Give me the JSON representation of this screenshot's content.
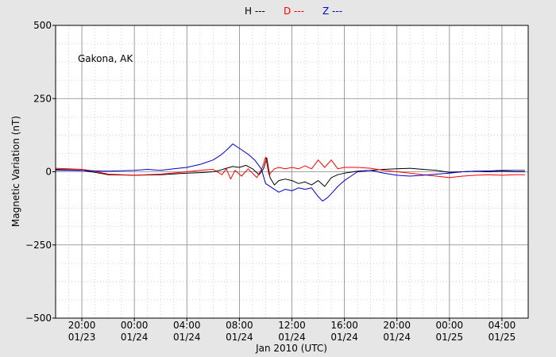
{
  "chart_data": {
    "type": "line",
    "title": "",
    "annotation": "Gakona, AK",
    "ylabel": "Magnetic Variation (nT)",
    "xlabel": "Jan 2010 (UTC)",
    "ylim": [
      -500,
      500
    ],
    "xlim": [
      "2010-01-23 18:00",
      "2010-01-25 06:00"
    ],
    "y_ticks": [
      -500,
      -250,
      0,
      250,
      500
    ],
    "y_tick_labels": [
      "−500",
      "−250",
      "0",
      "250",
      "500"
    ],
    "x_ticks": [
      {
        "time": "2010-01-23 20:00",
        "line1": "20:00",
        "line2": "01/23"
      },
      {
        "time": "2010-01-24 00:00",
        "line1": "00:00",
        "line2": "01/24"
      },
      {
        "time": "2010-01-24 04:00",
        "line1": "04:00",
        "line2": "01/24"
      },
      {
        "time": "2010-01-24 08:00",
        "line1": "08:00",
        "line2": "01/24"
      },
      {
        "time": "2010-01-24 12:00",
        "line1": "12:00",
        "line2": "01/24"
      },
      {
        "time": "2010-01-24 16:00",
        "line1": "16:00",
        "line2": "01/24"
      },
      {
        "time": "2010-01-24 20:00",
        "line1": "20:00",
        "line2": "01/24"
      },
      {
        "time": "2010-01-25 00:00",
        "line1": "00:00",
        "line2": "01/25"
      },
      {
        "time": "2010-01-25 04:00",
        "line1": "04:00",
        "line2": "01/25"
      }
    ],
    "grid": true,
    "legend_position": "top",
    "series": [
      {
        "name": "H ---",
        "color": "#000000",
        "points": [
          [
            "2010-01-23 18:00",
            8
          ],
          [
            "2010-01-23 20:00",
            5
          ],
          [
            "2010-01-23 21:00",
            -2
          ],
          [
            "2010-01-23 22:00",
            -10
          ],
          [
            "2010-01-24 00:00",
            -12
          ],
          [
            "2010-01-24 02:00",
            -10
          ],
          [
            "2010-01-24 04:00",
            -5
          ],
          [
            "2010-01-24 05:00",
            -3
          ],
          [
            "2010-01-24 06:00",
            0
          ],
          [
            "2010-01-24 06:30",
            5
          ],
          [
            "2010-01-24 07:00",
            12
          ],
          [
            "2010-01-24 07:30",
            18
          ],
          [
            "2010-01-24 08:00",
            15
          ],
          [
            "2010-01-24 08:30",
            22
          ],
          [
            "2010-01-24 09:00",
            10
          ],
          [
            "2010-01-24 09:30",
            -10
          ],
          [
            "2010-01-24 09:50",
            10
          ],
          [
            "2010-01-24 10:05",
            48
          ],
          [
            "2010-01-24 10:20",
            -20
          ],
          [
            "2010-01-24 10:40",
            -45
          ],
          [
            "2010-01-24 11:00",
            -30
          ],
          [
            "2010-01-24 11:30",
            -25
          ],
          [
            "2010-01-24 12:00",
            -30
          ],
          [
            "2010-01-24 12:30",
            -40
          ],
          [
            "2010-01-24 13:00",
            -35
          ],
          [
            "2010-01-24 13:30",
            -45
          ],
          [
            "2010-01-24 14:00",
            -30
          ],
          [
            "2010-01-24 14:30",
            -50
          ],
          [
            "2010-01-24 15:00",
            -20
          ],
          [
            "2010-01-24 15:30",
            -10
          ],
          [
            "2010-01-24 16:00",
            -5
          ],
          [
            "2010-01-24 17:00",
            2
          ],
          [
            "2010-01-24 18:00",
            5
          ],
          [
            "2010-01-24 19:00",
            8
          ],
          [
            "2010-01-24 20:00",
            10
          ],
          [
            "2010-01-24 21:00",
            12
          ],
          [
            "2010-01-24 22:00",
            8
          ],
          [
            "2010-01-24 23:00",
            5
          ],
          [
            "2010-01-25 00:00",
            -2
          ],
          [
            "2010-01-25 01:00",
            0
          ],
          [
            "2010-01-25 02:00",
            2
          ],
          [
            "2010-01-25 03:00",
            0
          ],
          [
            "2010-01-25 04:00",
            2
          ],
          [
            "2010-01-25 05:00",
            0
          ],
          [
            "2010-01-25 05:45",
            0
          ]
        ]
      },
      {
        "name": "D ---",
        "color": "#ff0000",
        "points": [
          [
            "2010-01-23 18:00",
            12
          ],
          [
            "2010-01-23 19:00",
            10
          ],
          [
            "2010-01-23 20:00",
            8
          ],
          [
            "2010-01-23 21:00",
            2
          ],
          [
            "2010-01-23 22:00",
            -8
          ],
          [
            "2010-01-24 00:00",
            -12
          ],
          [
            "2010-01-24 02:00",
            -8
          ],
          [
            "2010-01-24 04:00",
            0
          ],
          [
            "2010-01-24 05:00",
            5
          ],
          [
            "2010-01-24 06:00",
            8
          ],
          [
            "2010-01-24 06:40",
            -10
          ],
          [
            "2010-01-24 07:00",
            10
          ],
          [
            "2010-01-24 07:20",
            -25
          ],
          [
            "2010-01-24 07:40",
            5
          ],
          [
            "2010-01-24 08:10",
            -15
          ],
          [
            "2010-01-24 08:40",
            10
          ],
          [
            "2010-01-24 09:20",
            -20
          ],
          [
            "2010-01-24 09:45",
            15
          ],
          [
            "2010-01-24 10:00",
            50
          ],
          [
            "2010-01-24 10:15",
            -10
          ],
          [
            "2010-01-24 10:40",
            10
          ],
          [
            "2010-01-24 11:00",
            15
          ],
          [
            "2010-01-24 11:30",
            10
          ],
          [
            "2010-01-24 12:00",
            15
          ],
          [
            "2010-01-24 12:30",
            10
          ],
          [
            "2010-01-24 13:00",
            20
          ],
          [
            "2010-01-24 13:30",
            10
          ],
          [
            "2010-01-24 14:00",
            40
          ],
          [
            "2010-01-24 14:30",
            15
          ],
          [
            "2010-01-24 15:00",
            40
          ],
          [
            "2010-01-24 15:30",
            10
          ],
          [
            "2010-01-24 16:00",
            15
          ],
          [
            "2010-01-24 17:00",
            15
          ],
          [
            "2010-01-24 18:00",
            12
          ],
          [
            "2010-01-24 19:00",
            5
          ],
          [
            "2010-01-24 20:00",
            0
          ],
          [
            "2010-01-24 21:00",
            -5
          ],
          [
            "2010-01-24 22:00",
            -10
          ],
          [
            "2010-01-24 23:00",
            -15
          ],
          [
            "2010-01-25 00:00",
            -20
          ],
          [
            "2010-01-25 01:00",
            -15
          ],
          [
            "2010-01-25 02:00",
            -12
          ],
          [
            "2010-01-25 03:00",
            -10
          ],
          [
            "2010-01-25 04:00",
            -12
          ],
          [
            "2010-01-25 05:00",
            -10
          ],
          [
            "2010-01-25 05:45",
            -10
          ]
        ]
      },
      {
        "name": "Z ---",
        "color": "#0000cc",
        "points": [
          [
            "2010-01-23 18:00",
            5
          ],
          [
            "2010-01-23 19:00",
            5
          ],
          [
            "2010-01-23 20:00",
            4
          ],
          [
            "2010-01-23 21:00",
            3
          ],
          [
            "2010-01-23 22:00",
            2
          ],
          [
            "2010-01-24 00:00",
            5
          ],
          [
            "2010-01-24 01:00",
            8
          ],
          [
            "2010-01-24 02:00",
            5
          ],
          [
            "2010-01-24 03:00",
            10
          ],
          [
            "2010-01-24 04:00",
            15
          ],
          [
            "2010-01-24 05:00",
            25
          ],
          [
            "2010-01-24 06:00",
            40
          ],
          [
            "2010-01-24 06:40",
            60
          ],
          [
            "2010-01-24 07:10",
            80
          ],
          [
            "2010-01-24 07:30",
            95
          ],
          [
            "2010-01-24 08:00",
            80
          ],
          [
            "2010-01-24 08:40",
            60
          ],
          [
            "2010-01-24 09:10",
            40
          ],
          [
            "2010-01-24 09:40",
            10
          ],
          [
            "2010-01-24 10:00",
            -40
          ],
          [
            "2010-01-24 10:30",
            -55
          ],
          [
            "2010-01-24 11:00",
            -70
          ],
          [
            "2010-01-24 11:30",
            -60
          ],
          [
            "2010-01-24 12:00",
            -65
          ],
          [
            "2010-01-24 12:30",
            -55
          ],
          [
            "2010-01-24 13:00",
            -60
          ],
          [
            "2010-01-24 13:30",
            -55
          ],
          [
            "2010-01-24 14:00",
            -85
          ],
          [
            "2010-01-24 14:20",
            -100
          ],
          [
            "2010-01-24 14:40",
            -90
          ],
          [
            "2010-01-24 15:00",
            -75
          ],
          [
            "2010-01-24 15:30",
            -50
          ],
          [
            "2010-01-24 16:00",
            -30
          ],
          [
            "2010-01-24 16:30",
            -15
          ],
          [
            "2010-01-24 17:00",
            0
          ],
          [
            "2010-01-24 18:00",
            5
          ],
          [
            "2010-01-24 19:00",
            -5
          ],
          [
            "2010-01-24 20:00",
            -12
          ],
          [
            "2010-01-24 21:00",
            -15
          ],
          [
            "2010-01-24 22:00",
            -12
          ],
          [
            "2010-01-24 23:00",
            -8
          ],
          [
            "2010-01-25 00:00",
            -5
          ],
          [
            "2010-01-25 01:00",
            0
          ],
          [
            "2010-01-25 02:00",
            2
          ],
          [
            "2010-01-25 03:00",
            3
          ],
          [
            "2010-01-25 04:00",
            5
          ],
          [
            "2010-01-25 05:00",
            5
          ],
          [
            "2010-01-25 05:45",
            5
          ]
        ]
      }
    ]
  }
}
